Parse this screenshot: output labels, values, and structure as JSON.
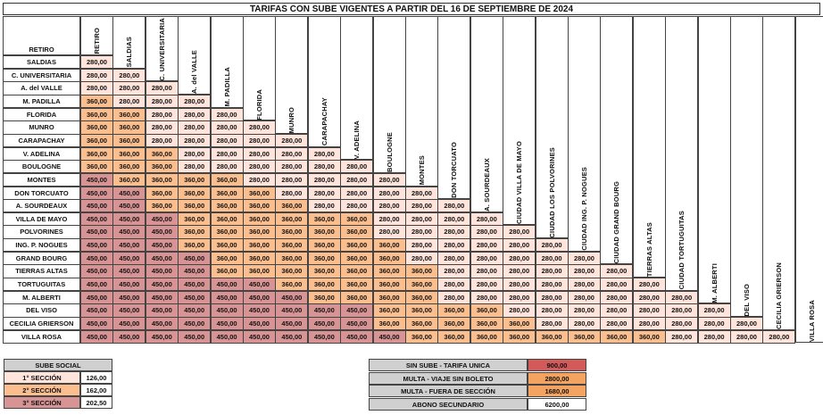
{
  "title": "TARIFAS CON SUBE VIGENTES A PARTIR DEL  16 DE SEPTIEMBRE DE 2024",
  "colors": {
    "tier_280": "#ffe4dc",
    "tier_360": "#fbbf8f",
    "tier_450": "#d89494",
    "header_gray": "#d0d0d0",
    "sin_sube": "#d45a5a",
    "multa": "#f4a460"
  },
  "header_corner_label": "RETIRO",
  "stations": [
    "RETIRO",
    "SALDIAS",
    "C. UNIVERSITARIA",
    "A. del  VALLE",
    "M. PADILLA",
    "FLORIDA",
    "MUNRO",
    "CARAPACHAY",
    "V. ADELINA",
    "BOULOGNE",
    "MONTES",
    "DON  TORCUATO",
    "A.  SOURDEAUX",
    "CIUDAD VILLA  DE  MAYO",
    "CIUDAD LOS POLVORINES",
    "CIUDAD ING.  P. NOGUES",
    "CIUDAD GRAND  BOURG",
    "TIERRAS  ALTAS",
    "CIUDAD TORTUGUITAS",
    "M.  ALBERTI",
    "DEL  VISO",
    "CECILIA GRIERSON",
    "VILLA ROSA"
  ],
  "rows": [
    {
      "label": "SALDIAS",
      "values": [
        "280,00"
      ]
    },
    {
      "label": "C. UNIVERSITARIA",
      "values": [
        "280,00",
        "280,00"
      ]
    },
    {
      "label": "A. del  VALLE",
      "values": [
        "280,00",
        "280,00",
        "280,00"
      ]
    },
    {
      "label": "M. PADILLA",
      "values": [
        "360,00",
        "280,00",
        "280,00",
        "280,00"
      ]
    },
    {
      "label": "FLORIDA",
      "values": [
        "360,00",
        "360,00",
        "280,00",
        "280,00",
        "280,00"
      ]
    },
    {
      "label": "MUNRO",
      "values": [
        "360,00",
        "360,00",
        "280,00",
        "280,00",
        "280,00",
        "280,00"
      ]
    },
    {
      "label": "CARAPACHAY",
      "values": [
        "360,00",
        "360,00",
        "280,00",
        "280,00",
        "280,00",
        "280,00",
        "280,00"
      ]
    },
    {
      "label": "V. ADELINA",
      "values": [
        "360,00",
        "360,00",
        "360,00",
        "280,00",
        "280,00",
        "280,00",
        "280,00",
        "280,00"
      ]
    },
    {
      "label": "BOULOGNE",
      "values": [
        "360,00",
        "360,00",
        "360,00",
        "280,00",
        "280,00",
        "280,00",
        "280,00",
        "280,00",
        "280,00"
      ]
    },
    {
      "label": "MONTES",
      "values": [
        "450,00",
        "360,00",
        "360,00",
        "360,00",
        "360,00",
        "280,00",
        "280,00",
        "280,00",
        "280,00",
        "280,00"
      ]
    },
    {
      "label": "DON  TORCUATO",
      "values": [
        "450,00",
        "450,00",
        "360,00",
        "360,00",
        "360,00",
        "360,00",
        "280,00",
        "280,00",
        "280,00",
        "280,00",
        "280,00"
      ]
    },
    {
      "label": "A.  SOURDEAUX",
      "values": [
        "450,00",
        "450,00",
        "360,00",
        "360,00",
        "360,00",
        "360,00",
        "360,00",
        "280,00",
        "280,00",
        "280,00",
        "280,00",
        "280,00"
      ]
    },
    {
      "label": "VILLA  DE  MAYO",
      "values": [
        "450,00",
        "450,00",
        "450,00",
        "360,00",
        "360,00",
        "360,00",
        "360,00",
        "360,00",
        "360,00",
        "280,00",
        "280,00",
        "280,00",
        "280,00"
      ]
    },
    {
      "label": "POLVORINES",
      "values": [
        "450,00",
        "450,00",
        "450,00",
        "360,00",
        "360,00",
        "360,00",
        "360,00",
        "360,00",
        "360,00",
        "280,00",
        "280,00",
        "280,00",
        "280,00",
        "280,00"
      ]
    },
    {
      "label": "ING.  P. NOGUES",
      "values": [
        "450,00",
        "450,00",
        "450,00",
        "360,00",
        "360,00",
        "360,00",
        "360,00",
        "360,00",
        "360,00",
        "360,00",
        "280,00",
        "280,00",
        "280,00",
        "280,00",
        "280,00"
      ]
    },
    {
      "label": "GRAND  BOURG",
      "values": [
        "450,00",
        "450,00",
        "450,00",
        "450,00",
        "360,00",
        "360,00",
        "360,00",
        "360,00",
        "360,00",
        "360,00",
        "280,00",
        "280,00",
        "280,00",
        "280,00",
        "280,00",
        "280,00"
      ]
    },
    {
      "label": "TIERRAS  ALTAS",
      "values": [
        "450,00",
        "450,00",
        "450,00",
        "450,00",
        "360,00",
        "360,00",
        "360,00",
        "360,00",
        "360,00",
        "360,00",
        "360,00",
        "280,00",
        "280,00",
        "280,00",
        "280,00",
        "280,00",
        "280,00"
      ]
    },
    {
      "label": "TORTUGUITAS",
      "values": [
        "450,00",
        "450,00",
        "450,00",
        "450,00",
        "450,00",
        "450,00",
        "360,00",
        "360,00",
        "360,00",
        "360,00",
        "360,00",
        "280,00",
        "280,00",
        "280,00",
        "280,00",
        "280,00",
        "280,00",
        "280,00"
      ]
    },
    {
      "label": "M.  ALBERTI",
      "values": [
        "450,00",
        "450,00",
        "450,00",
        "450,00",
        "450,00",
        "450,00",
        "450,00",
        "360,00",
        "360,00",
        "360,00",
        "360,00",
        "280,00",
        "280,00",
        "280,00",
        "280,00",
        "280,00",
        "280,00",
        "280,00",
        "280,00"
      ]
    },
    {
      "label": "DEL  VISO",
      "values": [
        "450,00",
        "450,00",
        "450,00",
        "450,00",
        "450,00",
        "450,00",
        "450,00",
        "450,00",
        "450,00",
        "360,00",
        "360,00",
        "360,00",
        "360,00",
        "280,00",
        "280,00",
        "280,00",
        "280,00",
        "280,00",
        "280,00",
        "280,00"
      ]
    },
    {
      "label": "CECILIA GRIERSON",
      "values": [
        "450,00",
        "450,00",
        "450,00",
        "450,00",
        "450,00",
        "450,00",
        "450,00",
        "450,00",
        "450,00",
        "360,00",
        "360,00",
        "360,00",
        "360,00",
        "360,00",
        "280,00",
        "280,00",
        "280,00",
        "280,00",
        "280,00",
        "280,00",
        "280,00"
      ]
    },
    {
      "label": "VILLA  ROSA",
      "values": [
        "450,00",
        "450,00",
        "450,00",
        "450,00",
        "450,00",
        "450,00",
        "450,00",
        "450,00",
        "450,00",
        "450,00",
        "360,00",
        "360,00",
        "360,00",
        "360,00",
        "360,00",
        "360,00",
        "360,00",
        "360,00",
        "280,00",
        "280,00",
        "280,00",
        "280,00"
      ]
    }
  ],
  "sube_social": {
    "header": "SUBE SOCIAL",
    "items": [
      {
        "label": "1° SECCIÓN",
        "value": "126,00",
        "tier": "280"
      },
      {
        "label": "2° SECCIÓN",
        "value": "162,00",
        "tier": "360"
      },
      {
        "label": "3° SECCIÓN",
        "value": "202,50",
        "tier": "450"
      }
    ]
  },
  "extras": [
    {
      "label": "SIN SUBE - TARIFA UNICA",
      "value": "900,00",
      "color": "#d45a5a"
    },
    {
      "label": "MULTA - VIAJE SIN BOLETO",
      "value": "2800,00",
      "color": "#f4a460"
    },
    {
      "label": "MULTA - FUERA DE SECCIÓN",
      "value": "1680,00",
      "color": "#f4a460"
    },
    {
      "label": "ABONO SECUNDARIO",
      "value": "6200,00",
      "color": "#ffffff"
    }
  ]
}
